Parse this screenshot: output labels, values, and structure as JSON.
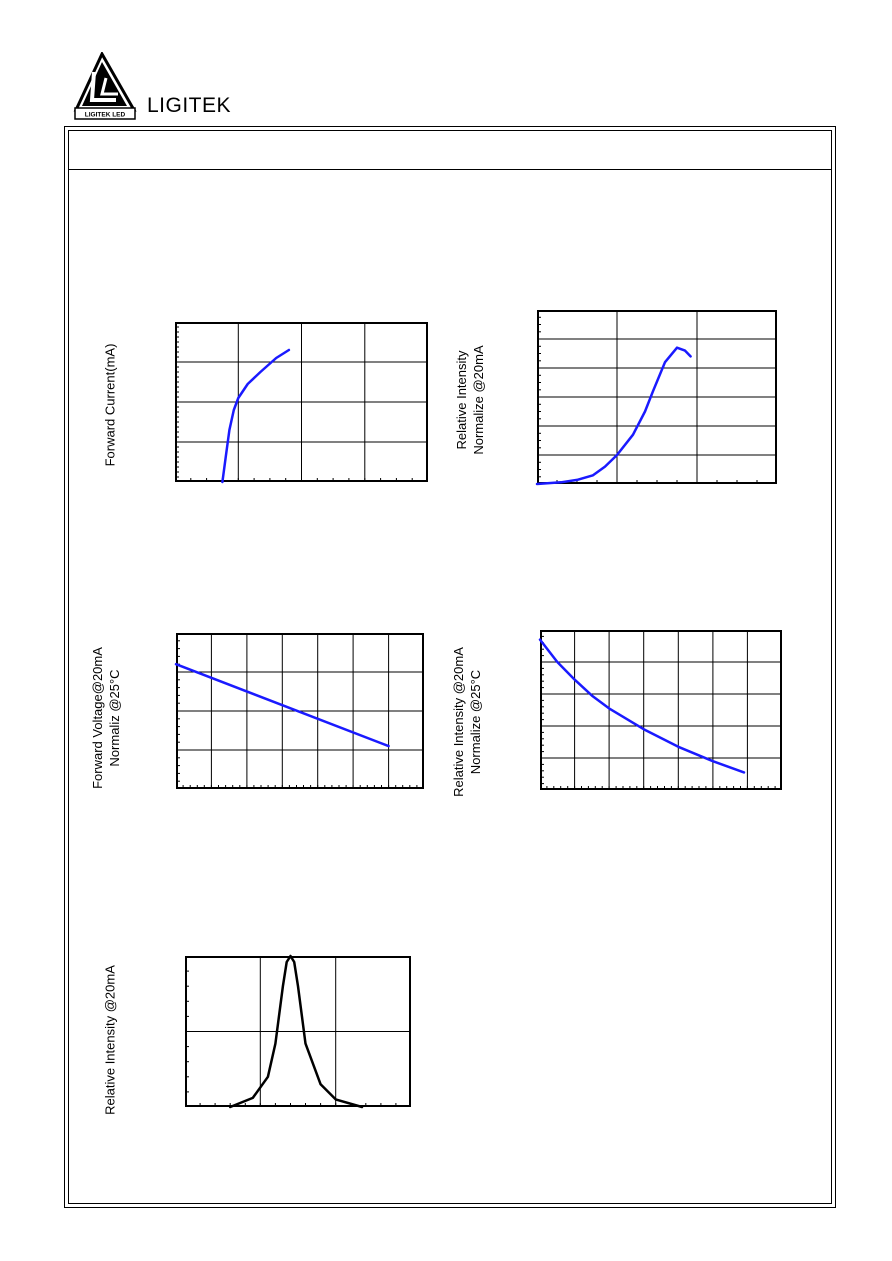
{
  "brand": {
    "name": "LIGITEK",
    "logo_text": "LIGITEK LED"
  },
  "charts": [
    {
      "ylabel_lines": [
        "Forward Current(mA)"
      ]
    },
    {
      "ylabel_lines": [
        "Relative Intensity",
        "Normalize @20mA"
      ]
    },
    {
      "ylabel_lines": [
        "Forward Voltage@20mA",
        "Normaliz @25°C"
      ]
    },
    {
      "ylabel_lines": [
        "Relative Intensity @20mA",
        "Normalize @25°C"
      ]
    },
    {
      "ylabel_lines": [
        "Relative Intensity @20mA"
      ]
    }
  ],
  "chart_data": [
    {
      "type": "line",
      "xlabel": "",
      "ylabel": "Forward Current(mA)",
      "xlim": [
        0,
        4
      ],
      "ylim": [
        0,
        4
      ],
      "grid": true,
      "series": [
        {
          "x": [
            0.75,
            0.8,
            0.86,
            0.93,
            1.0,
            1.15,
            1.35,
            1.6,
            1.8
          ],
          "y": [
            0.0,
            0.6,
            1.3,
            1.8,
            2.1,
            2.45,
            2.75,
            3.1,
            3.3
          ]
        }
      ]
    },
    {
      "type": "line",
      "xlabel": "",
      "ylabel": "Relative Intensity Normalize @20mA",
      "xlim": [
        0,
        3
      ],
      "ylim": [
        0,
        3.0
      ],
      "grid": true,
      "series": [
        {
          "x": [
            0.0,
            0.3,
            0.5,
            0.7,
            0.85,
            1.0,
            1.2,
            1.35,
            1.45,
            1.6,
            1.75,
            1.85,
            1.92
          ],
          "y": [
            0.0,
            0.03,
            0.07,
            0.15,
            0.3,
            0.5,
            0.85,
            1.25,
            1.6,
            2.1,
            2.35,
            2.3,
            2.2
          ]
        }
      ]
    },
    {
      "type": "line",
      "xlabel": "",
      "ylabel": "Forward Voltage@20mA Normaliz @25°C",
      "xlim": [
        0,
        7
      ],
      "ylim": [
        0,
        4
      ],
      "grid": true,
      "series": [
        {
          "x": [
            0.0,
            6.0
          ],
          "y": [
            3.2,
            1.1
          ]
        }
      ]
    },
    {
      "type": "line",
      "xlabel": "",
      "ylabel": "Relative Intensity @20mA Normalize @25°C",
      "xlim": [
        0,
        7
      ],
      "ylim": [
        0,
        5
      ],
      "grid": true,
      "series": [
        {
          "x": [
            0.0,
            0.5,
            1.0,
            1.5,
            2.0,
            3.0,
            4.0,
            5.0,
            5.9
          ],
          "y": [
            4.7,
            4.0,
            3.45,
            2.95,
            2.55,
            1.9,
            1.35,
            0.9,
            0.55
          ]
        }
      ]
    },
    {
      "type": "line",
      "xlabel": "",
      "ylabel": "Relative Intensity @20mA",
      "xlim": [
        0,
        3
      ],
      "ylim": [
        0,
        1
      ],
      "grid": true,
      "series": [
        {
          "x": [
            0.6,
            0.9,
            1.1,
            1.2,
            1.3,
            1.35,
            1.4,
            1.45,
            1.5,
            1.6,
            1.8,
            2.0,
            2.35
          ],
          "y": [
            0.0,
            0.06,
            0.2,
            0.42,
            0.8,
            0.96,
            1.0,
            0.96,
            0.8,
            0.42,
            0.15,
            0.05,
            0.0
          ]
        }
      ]
    }
  ]
}
